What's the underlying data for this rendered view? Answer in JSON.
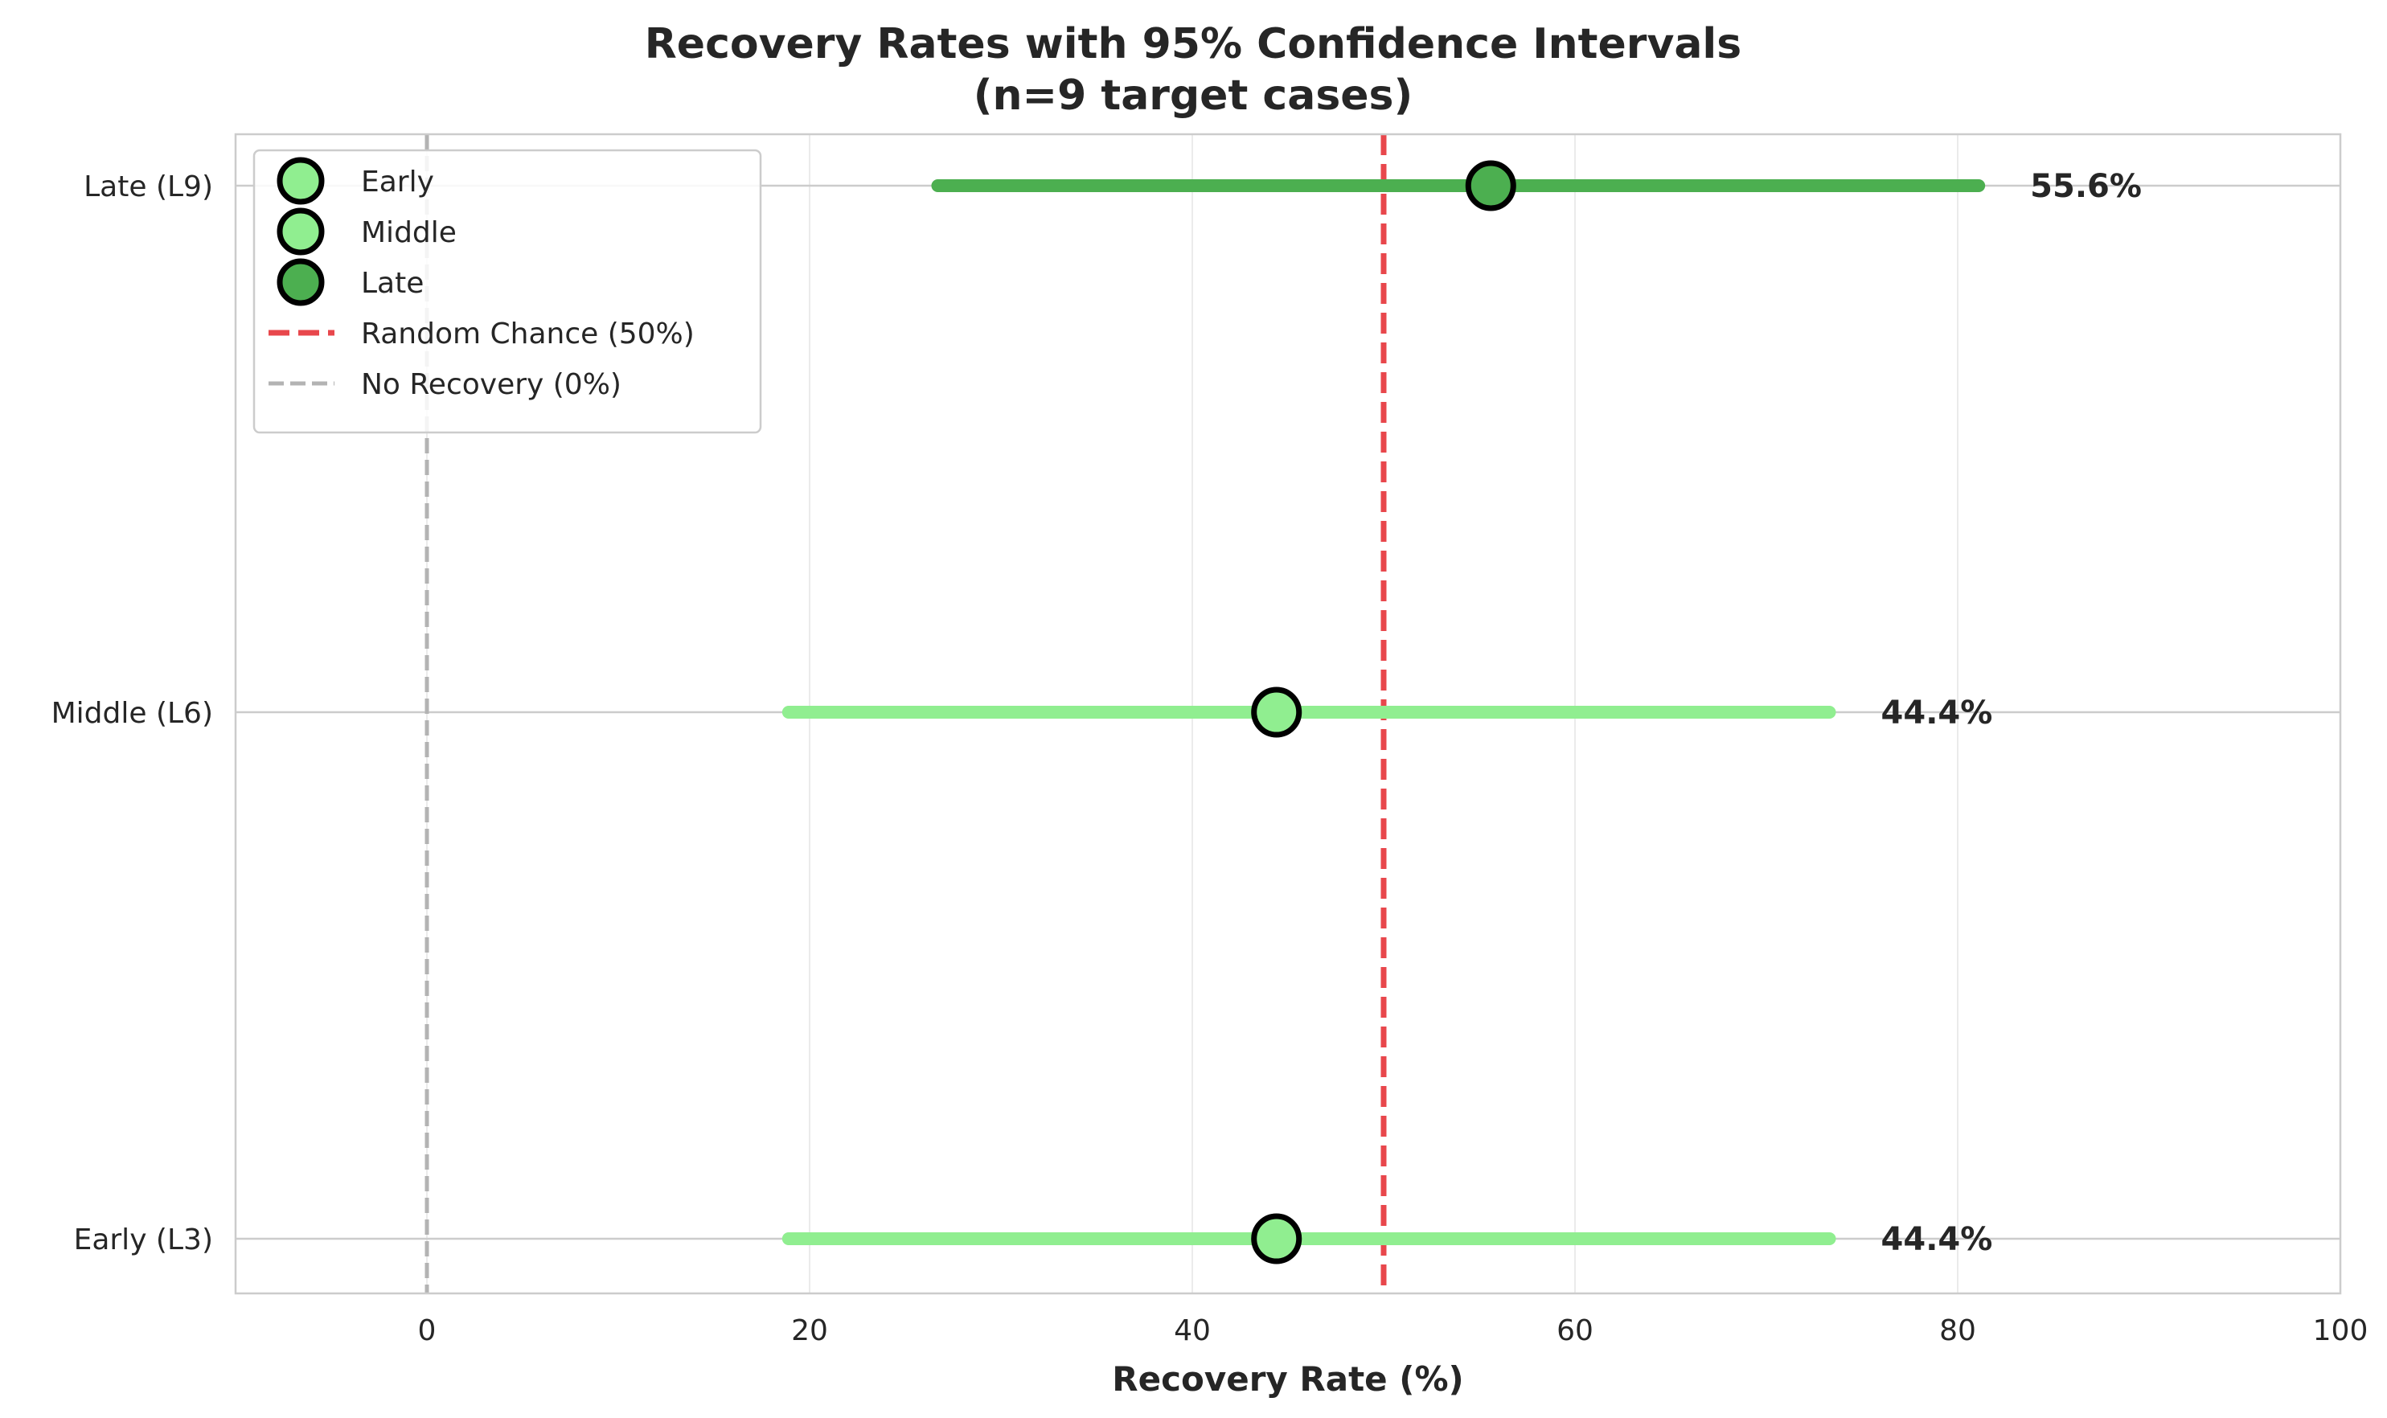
{
  "chart_data": {
    "type": "dot-interval",
    "title_line1": "Recovery Rates with 95% Confidence Intervals",
    "title_line2": "(n=9 target cases)",
    "xlabel": "Recovery Rate (%)",
    "ylabel": "",
    "xlim": [
      -10,
      100
    ],
    "xticks": [
      0,
      20,
      40,
      60,
      80,
      100
    ],
    "categories": [
      "Early (L3)",
      "Middle (L6)",
      "Late (L9)"
    ],
    "series": [
      {
        "name": "Early",
        "category": "Early (L3)",
        "value": 44.4,
        "ci_low": 18.9,
        "ci_high": 73.3,
        "label": "44.4%",
        "color": "#90ee90"
      },
      {
        "name": "Middle",
        "category": "Middle (L6)",
        "value": 44.4,
        "ci_low": 18.9,
        "ci_high": 73.3,
        "label": "44.4%",
        "color": "#90ee90"
      },
      {
        "name": "Late",
        "category": "Late (L9)",
        "value": 55.6,
        "ci_low": 26.7,
        "ci_high": 81.1,
        "label": "55.6%",
        "color": "#4caf50"
      }
    ],
    "reference_lines": [
      {
        "name": "Random Chance (50%)",
        "value": 50,
        "color": "#e8474c",
        "style": "dashed"
      },
      {
        "name": "No Recovery (0%)",
        "value": 0,
        "color": "#b3b3b3",
        "style": "dashed"
      }
    ],
    "grid": true,
    "legend_position": "top-left"
  }
}
